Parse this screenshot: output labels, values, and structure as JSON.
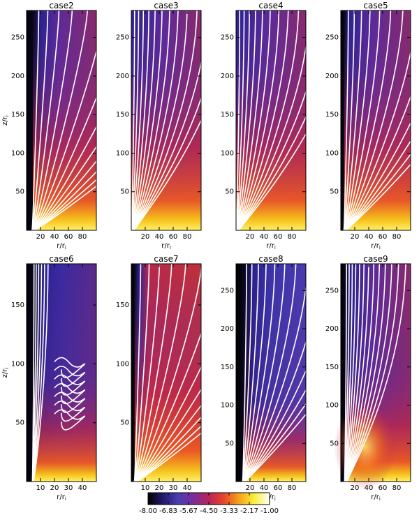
{
  "chart_data": [
    {
      "type": "heatmap",
      "title": "case2",
      "xlabel": "r/r",
      "xlabel_sub": "i",
      "ylabel": "z/r",
      "ylabel_sub": "i",
      "xlim": [
        0,
        100
      ],
      "ylim": [
        0,
        285
      ],
      "xticks": [
        20,
        40,
        60,
        80
      ],
      "yticks": [
        50,
        100,
        150,
        200,
        250
      ],
      "field_lines": "white",
      "colormap_range": [
        -8.0,
        -1.0
      ],
      "hot_base_extent": 0.95,
      "fan": 1.0,
      "dark_column": [
        0,
        15
      ]
    },
    {
      "type": "heatmap",
      "title": "case3",
      "xlabel": "r/r",
      "xlabel_sub": "i",
      "ylabel": "",
      "xlim": [
        0,
        100
      ],
      "ylim": [
        0,
        285
      ],
      "xticks": [
        20,
        40,
        60,
        80
      ],
      "yticks": [
        50,
        100,
        150,
        200,
        250
      ],
      "field_lines": "white",
      "colormap_range": [
        -8.0,
        -1.0
      ],
      "hot_base_extent": 0.95,
      "fan": 0.35,
      "dark_column": null
    },
    {
      "type": "heatmap",
      "title": "case4",
      "xlabel": "r/r",
      "xlabel_sub": "i",
      "ylabel": "",
      "xlim": [
        0,
        100
      ],
      "ylim": [
        0,
        285
      ],
      "xticks": [
        20,
        40,
        60,
        80
      ],
      "yticks": [
        50,
        100,
        150,
        200,
        250
      ],
      "field_lines": "white",
      "colormap_range": [
        -8.0,
        -1.0
      ],
      "hot_base_extent": 0.95,
      "fan": 0.4,
      "dark_column": null
    },
    {
      "type": "heatmap",
      "title": "case5",
      "xlabel": "r/r",
      "xlabel_sub": "i",
      "ylabel": "",
      "xlim": [
        0,
        100
      ],
      "ylim": [
        0,
        285
      ],
      "xticks": [
        20,
        40,
        60,
        80
      ],
      "yticks": [
        50,
        100,
        150,
        200,
        250
      ],
      "field_lines": "white",
      "colormap_range": [
        -8.0,
        -1.0
      ],
      "hot_base_extent": 0.95,
      "fan": 0.6,
      "dark_column": [
        0,
        8
      ]
    },
    {
      "type": "heatmap",
      "title": "case6",
      "xlabel": "r/r",
      "xlabel_sub": "i",
      "ylabel": "z/r",
      "ylabel_sub": "i",
      "xlim": [
        0,
        50
      ],
      "ylim": [
        0,
        185
      ],
      "xticks": [
        10,
        20,
        30,
        40
      ],
      "yticks": [
        50,
        100,
        150
      ],
      "field_lines": "white",
      "colormap_range": [
        -8.0,
        -1.0
      ],
      "hot_base_extent": 0.55,
      "fan": 0.15,
      "dark_column": [
        0,
        8
      ],
      "turbulent": true
    },
    {
      "type": "heatmap",
      "title": "case7",
      "xlabel": "r/r",
      "xlabel_sub": "i",
      "ylabel": "",
      "xlim": [
        0,
        50
      ],
      "ylim": [
        0,
        185
      ],
      "xticks": [
        10,
        20,
        30,
        40
      ],
      "yticks": [
        50,
        100,
        150
      ],
      "field_lines": "white",
      "colormap_range": [
        -8.0,
        -1.0
      ],
      "hot_base_extent": 1.0,
      "fan": 0.9,
      "dark_column": [
        0,
        4
      ]
    },
    {
      "type": "heatmap",
      "title": "case8",
      "xlabel": "r/r",
      "xlabel_sub": "i",
      "ylabel": "",
      "xlim": [
        0,
        100
      ],
      "ylim": [
        0,
        285
      ],
      "xticks": [
        20,
        40,
        60,
        80
      ],
      "yticks": [
        50,
        100,
        150,
        200,
        250
      ],
      "field_lines": "white",
      "colormap_range": [
        -8.0,
        -1.0
      ],
      "hot_base_extent": 0.4,
      "fan": 0.55,
      "dark_column": [
        0,
        18
      ]
    },
    {
      "type": "heatmap",
      "title": "case9",
      "xlabel": "r/r",
      "xlabel_sub": "i",
      "ylabel": "",
      "xlim": [
        0,
        100
      ],
      "ylim": [
        0,
        285
      ],
      "xticks": [
        20,
        40,
        60,
        80
      ],
      "yticks": [
        50,
        100,
        150,
        200,
        250
      ],
      "field_lines": "white",
      "colormap_range": [
        -8.0,
        -1.0
      ],
      "hot_base_extent": 0.6,
      "fan": 0.2,
      "dark_column": [
        0,
        10
      ],
      "plume": true
    }
  ],
  "colorbar": {
    "ticks": [
      "-8.00",
      "-6.83",
      "-5.67",
      "-4.50",
      "-3.33",
      "-2.17",
      "-1.00"
    ],
    "range": [
      -8.0,
      -1.0
    ],
    "colors": [
      "#000000",
      "#241a70",
      "#4a3fb0",
      "#7a2c9a",
      "#b8245a",
      "#e8452a",
      "#f5a21c",
      "#f7f03a",
      "#ffffff"
    ]
  }
}
